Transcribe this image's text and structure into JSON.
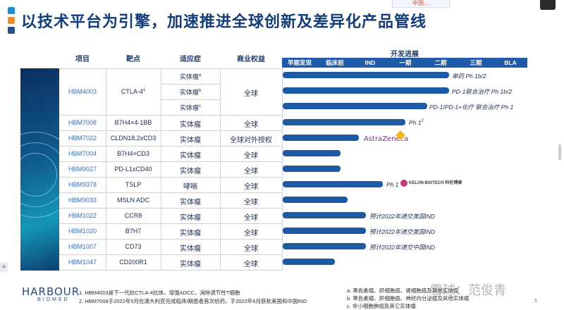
{
  "header": {
    "title": "以技术平台为引擎，加速推进全球创新及差异化产品管线",
    "top_logo": "中国…",
    "accent_colors": [
      "#1f8ed1",
      "#f28c28",
      "#2b4f86"
    ]
  },
  "table": {
    "columns": [
      "项目",
      "靶点",
      "适应症",
      "商业权益"
    ],
    "progress_title": "开发进展",
    "stages": [
      "早期发现",
      "临床前",
      "IND",
      "一期",
      "二期",
      "三期",
      "BLA"
    ],
    "rows": [
      {
        "project": "HBM4003",
        "target": "CTLA-4",
        "target_sup": "1",
        "indications": [
          {
            "text": "实体瘤",
            "sup": "a"
          },
          {
            "text": "实体瘤",
            "sup": "b"
          },
          {
            "text": "实体瘤",
            "sup": "c"
          }
        ],
        "rights": "全球",
        "progress": [
          {
            "stage_fraction": 0.68,
            "note": "单药 Ph 1b/2"
          },
          {
            "stage_fraction": 0.68,
            "note": "PD-1联合治疗 Ph 1b/2"
          },
          {
            "stage_fraction": 0.59,
            "note": "PD-1/PD-1+化疗 联合治疗 Ph 1"
          }
        ]
      },
      {
        "project": "HBM7008",
        "target": "B7H4×4-1BB",
        "indication": "实体瘤",
        "rights": "全球",
        "progress": [
          {
            "stage_fraction": 0.5,
            "note": "Ph 1",
            "note_sup": "2"
          }
        ]
      },
      {
        "project": "HBM7022",
        "target": "CLDN18.2xCD3",
        "indication": "实体瘤",
        "rights": "全球对外授权",
        "progress": [
          {
            "stage_fraction": 0.31,
            "partner": "AstraZeneca"
          }
        ]
      },
      {
        "project": "HBM7004",
        "target": "B7H4×CD3",
        "indication": "实体瘤",
        "rights": "全球",
        "progress": [
          {
            "stage_fraction": 0.24
          }
        ]
      },
      {
        "project": "HBM9027",
        "target": "PD-L1xCD40",
        "indication": "实体瘤",
        "rights": "全球",
        "progress": [
          {
            "stage_fraction": 0.24
          }
        ]
      },
      {
        "project": "HBM9378",
        "target": "TSLP",
        "indication": "哮喘",
        "rights": "全球",
        "progress": [
          {
            "stage_fraction": 0.41,
            "note": "Ph 1",
            "partner": "KELUN-BIOTECH 科伦博泰"
          }
        ]
      },
      {
        "project": "HBM9033",
        "target": "MSLN ADC",
        "indication": "实体瘤",
        "rights": "全球",
        "progress": [
          {
            "stage_fraction": 0.27
          }
        ]
      },
      {
        "project": "HBM1022",
        "target": "CCR8",
        "indication": "实体瘤",
        "rights": "全球",
        "progress": [
          {
            "stage_fraction": 0.34,
            "note": "预计2022年递交美国IND"
          }
        ]
      },
      {
        "project": "HBM1020",
        "target": "B7H7",
        "indication": "实体瘤",
        "rights": "全球",
        "progress": [
          {
            "stage_fraction": 0.34,
            "note": "预计2022年递交美国IND"
          }
        ]
      },
      {
        "project": "HBM1007",
        "target": "CD73",
        "indication": "实体瘤",
        "rights": "全球",
        "progress": [
          {
            "stage_fraction": 0.34,
            "note": "预计2022年递交中国IND"
          }
        ]
      },
      {
        "project": "HBM1047",
        "target": "CD200R1",
        "indication": "实体瘤",
        "rights": "全球",
        "progress": [
          {
            "stage_fraction": 0.22
          }
        ]
      }
    ]
  },
  "footer": {
    "brand": "HARBOUR",
    "brand_sub": "BIOMED",
    "notes": [
      "1.  HBM4003是下一代抗CTLA-4抗体，增强ADCC，消除调节性T细胞",
      "2.  HBM7008于2022年5月在澳大利亚完成临床I期患者首次给药，于2022年6月获批美国和中国IND"
    ],
    "letter_notes": [
      "a.  黑色素瘤、肝细胞癌、肾细胞癌及其他实体瘤",
      "b.  黑色素瘤、肝细胞癌、神经内分泌瘤及其他实体瘤",
      "c.  非小细胞肺癌及其它实体瘤"
    ],
    "watermark": "雪球：范俊青",
    "page_number": "5"
  }
}
